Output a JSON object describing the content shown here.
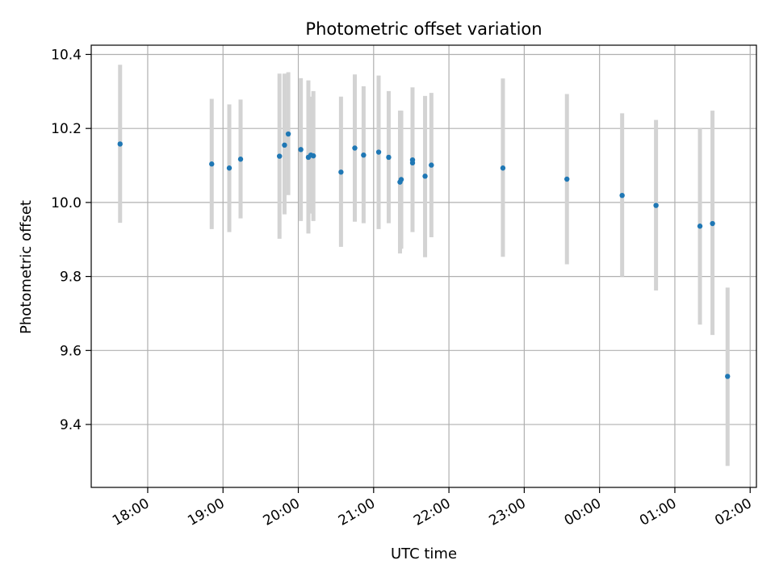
{
  "chart_data": {
    "type": "scatter",
    "title": "Photometric offset variation",
    "xlabel": "UTC time",
    "ylabel": "Photometric offset",
    "x_unit": "hour of day (UTC), times after midnight belong to the following day",
    "xlim": [
      "17:15",
      "02:05"
    ],
    "ylim": [
      9.23,
      10.425
    ],
    "grid": true,
    "x_ticks": [
      "18:00",
      "19:00",
      "20:00",
      "21:00",
      "22:00",
      "23:00",
      "00:00",
      "01:00",
      "02:00"
    ],
    "y_ticks": [
      "9.4",
      "9.6",
      "9.8",
      "10.0",
      "10.2",
      "10.4"
    ],
    "colors": {
      "point": "#1f77b4",
      "errorbar": "#d3d3d3",
      "grid": "#b0b0b0"
    },
    "points": [
      {
        "t": "17:38",
        "y": 10.158,
        "lo": 9.945,
        "hi": 10.372
      },
      {
        "t": "18:51",
        "y": 10.104,
        "lo": 9.928,
        "hi": 10.28
      },
      {
        "t": "19:05",
        "y": 10.093,
        "lo": 9.92,
        "hi": 10.265
      },
      {
        "t": "19:14",
        "y": 10.117,
        "lo": 9.957,
        "hi": 10.278
      },
      {
        "t": "19:45",
        "y": 10.125,
        "lo": 9.902,
        "hi": 10.348
      },
      {
        "t": "19:49",
        "y": 10.155,
        "lo": 9.968,
        "hi": 10.348
      },
      {
        "t": "19:52",
        "y": 10.185,
        "lo": 10.02,
        "hi": 10.352
      },
      {
        "t": "20:02",
        "y": 10.143,
        "lo": 9.95,
        "hi": 10.336
      },
      {
        "t": "20:08",
        "y": 10.122,
        "lo": 9.916,
        "hi": 10.33
      },
      {
        "t": "20:10",
        "y": 10.128,
        "lo": 9.97,
        "hi": 10.286
      },
      {
        "t": "20:12",
        "y": 10.126,
        "lo": 9.95,
        "hi": 10.301
      },
      {
        "t": "20:34",
        "y": 10.082,
        "lo": 9.88,
        "hi": 10.286
      },
      {
        "t": "20:45",
        "y": 10.147,
        "lo": 9.948,
        "hi": 10.346
      },
      {
        "t": "20:52",
        "y": 10.128,
        "lo": 9.944,
        "hi": 10.314
      },
      {
        "t": "21:04",
        "y": 10.136,
        "lo": 9.928,
        "hi": 10.343
      },
      {
        "t": "21:12",
        "y": 10.122,
        "lo": 9.944,
        "hi": 10.301
      },
      {
        "t": "21:21",
        "y": 10.055,
        "lo": 9.862,
        "hi": 10.248
      },
      {
        "t": "21:22",
        "y": 10.062,
        "lo": 9.875,
        "hi": 10.248
      },
      {
        "t": "21:31",
        "y": 10.107,
        "lo": 9.92,
        "hi": 10.311
      },
      {
        "t": "21:31",
        "y": 10.115,
        "lo": 9.93,
        "hi": 10.301
      },
      {
        "t": "21:41",
        "y": 10.071,
        "lo": 9.852,
        "hi": 10.288
      },
      {
        "t": "21:46",
        "y": 10.101,
        "lo": 9.906,
        "hi": 10.296
      },
      {
        "t": "22:43",
        "y": 10.093,
        "lo": 9.853,
        "hi": 10.335
      },
      {
        "t": "23:34",
        "y": 10.063,
        "lo": 9.833,
        "hi": 10.293
      },
      {
        "t": "00:18",
        "y": 10.019,
        "lo": 9.8,
        "hi": 10.241
      },
      {
        "t": "00:45",
        "y": 9.992,
        "lo": 9.762,
        "hi": 10.223
      },
      {
        "t": "01:20",
        "y": 9.936,
        "lo": 9.67,
        "hi": 10.2
      },
      {
        "t": "01:30",
        "y": 9.943,
        "lo": 9.642,
        "hi": 10.248
      },
      {
        "t": "01:42",
        "y": 9.53,
        "lo": 9.288,
        "hi": 9.77
      }
    ]
  }
}
